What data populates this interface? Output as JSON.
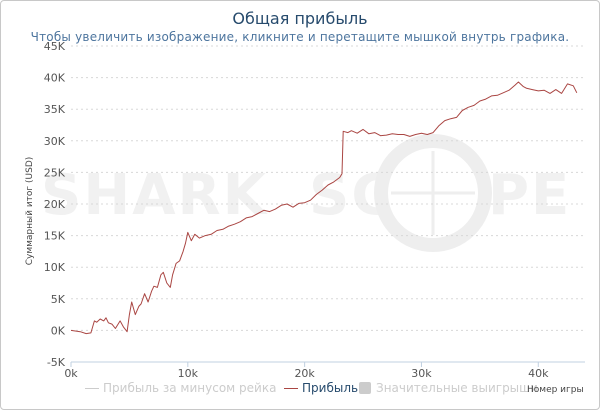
{
  "chart_data": {
    "type": "line",
    "title": "Общая прибыль",
    "subtitle": "Чтобы увеличить изображение, кликните и перетащите мышкой внутрь графика.",
    "xlabel": "Номер игры",
    "ylabel": "Суммарный итог (USD)",
    "xlim": [
      0,
      44000
    ],
    "ylim": [
      -5000,
      45000
    ],
    "x_ticks": [
      "0k",
      "10k",
      "20k",
      "30k",
      "40k"
    ],
    "y_ticks": [
      "-5K",
      "0K",
      "5K",
      "10K",
      "15K",
      "20K",
      "25K",
      "30K",
      "35K",
      "40K",
      "45K"
    ],
    "grid": true,
    "legend_position": "bottom",
    "watermark": "SHARK SCOPE",
    "legend": [
      {
        "label": "Прибыль за минусом рейка",
        "color": "#cccccc",
        "marker": "line"
      },
      {
        "label": "Прибыль",
        "color": "#aa4643",
        "marker": "line"
      },
      {
        "label": "Значительные выигрыши",
        "color": "#cccccc",
        "marker": "box"
      }
    ],
    "series": [
      {
        "name": "Прибыль",
        "color": "#aa4643",
        "x": [
          0,
          800,
          1300,
          1700,
          2000,
          2200,
          2500,
          2800,
          3000,
          3200,
          3500,
          3800,
          4200,
          4500,
          4800,
          5000,
          5200,
          5500,
          5800,
          6000,
          6300,
          6600,
          6900,
          7100,
          7400,
          7700,
          7900,
          8200,
          8500,
          8700,
          9000,
          9300,
          9600,
          9800,
          10000,
          10300,
          10600,
          11000,
          11500,
          12000,
          12500,
          13000,
          13500,
          14000,
          14500,
          15000,
          15500,
          16000,
          16500,
          17000,
          17500,
          18000,
          18500,
          19000,
          19500,
          20000,
          20500,
          21000,
          21500,
          22000,
          22500,
          23000,
          23200,
          23300,
          23700,
          24000,
          24500,
          25000,
          25500,
          26000,
          26500,
          27000,
          27500,
          28000,
          28500,
          29000,
          29500,
          30000,
          30500,
          31000,
          31500,
          32000,
          32500,
          33000,
          33500,
          34000,
          34500,
          35000,
          35500,
          36000,
          36500,
          37000,
          37500,
          38000,
          38300,
          38700,
          39000,
          39500,
          40000,
          40500,
          41000,
          41500,
          42000,
          42500,
          43000,
          43300
        ],
        "y": [
          0,
          -200,
          -500,
          -400,
          1500,
          1300,
          1800,
          1500,
          2000,
          1200,
          1000,
          300,
          1500,
          500,
          -200,
          2500,
          4500,
          2500,
          3800,
          4200,
          5800,
          4500,
          6200,
          7000,
          6800,
          8800,
          9200,
          7500,
          6800,
          8800,
          10600,
          11000,
          12500,
          13800,
          15500,
          14200,
          15200,
          14600,
          15000,
          15200,
          15800,
          16000,
          16500,
          16800,
          17200,
          17800,
          18000,
          18500,
          19000,
          18800,
          19200,
          19800,
          20000,
          19500,
          20100,
          20200,
          20600,
          21500,
          22200,
          23000,
          23500,
          24200,
          24800,
          31500,
          31300,
          31600,
          31200,
          31800,
          31100,
          31300,
          30800,
          30900,
          31100,
          31000,
          31000,
          30700,
          31000,
          31200,
          31000,
          31300,
          32400,
          33200,
          33500,
          33700,
          34800,
          35300,
          35600,
          36300,
          36600,
          37100,
          37200,
          37600,
          38000,
          38800,
          39300,
          38600,
          38300,
          38100,
          37900,
          38000,
          37500,
          38100,
          37500,
          39000,
          38700,
          37600
        ]
      }
    ]
  }
}
